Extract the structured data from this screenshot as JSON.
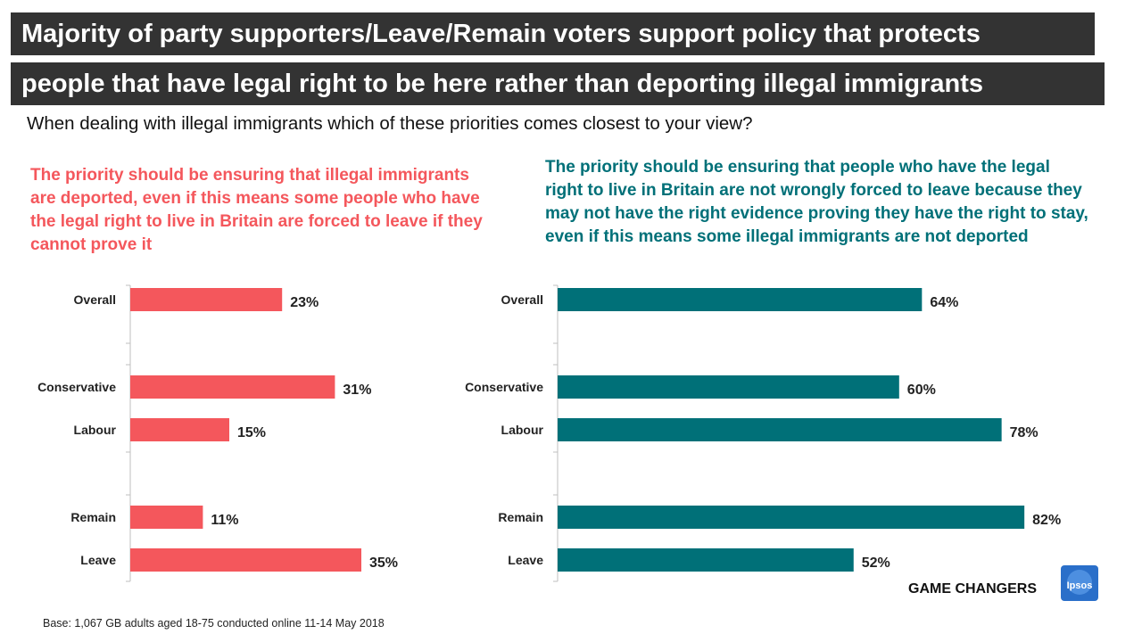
{
  "title": {
    "line1": "Majority of party supporters/Leave/Remain voters support policy that protects",
    "line2": "people that have legal right to be here rather than deporting illegal immigrants"
  },
  "question": "When dealing with illegal immigrants which of these priorities comes closest to your view?",
  "footnote": "Base: 1,067 GB adults aged 18-75 conducted online 11-14 May 2018",
  "branding": {
    "tagline": "GAME CHANGERS",
    "logo_text": "Ipsos"
  },
  "colors": {
    "left": "#f4575c",
    "right": "#007078",
    "title_bg": "#333333",
    "logo": "#2a6fc9"
  },
  "chart_data": [
    {
      "type": "bar",
      "orientation": "horizontal",
      "title": "The priority should be ensuring that illegal immigrants are deported, even if this means some people who have the legal right to live in Britain are forced to leave if they cannot prove it",
      "categories": [
        "Overall",
        "Conservative",
        "Labour",
        "Remain",
        "Leave"
      ],
      "values": [
        23,
        31,
        15,
        11,
        35
      ],
      "value_labels": [
        "23%",
        "31%",
        "15%",
        "11%",
        "35%"
      ],
      "xlim": [
        0,
        100
      ],
      "color": "#f4575c"
    },
    {
      "type": "bar",
      "orientation": "horizontal",
      "title": "The priority should be ensuring that people who have the legal right to live in Britain are not wrongly forced to leave because they may not have the right evidence proving they have the right to stay, even if this means some illegal immigrants are not deported",
      "categories": [
        "Overall",
        "Conservative",
        "Labour",
        "Remain",
        "Leave"
      ],
      "values": [
        64,
        60,
        78,
        82,
        52
      ],
      "value_labels": [
        "64%",
        "60%",
        "78%",
        "82%",
        "52%"
      ],
      "xlim": [
        0,
        100
      ],
      "color": "#007078"
    }
  ]
}
